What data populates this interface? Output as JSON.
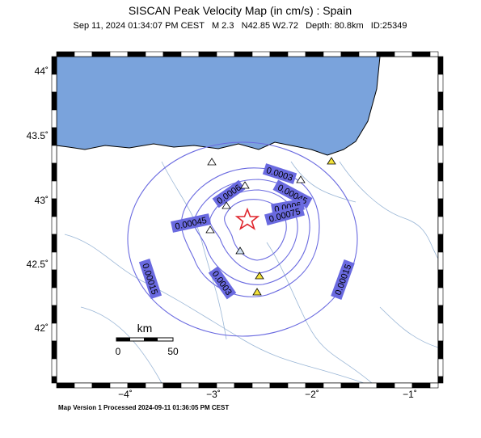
{
  "header": {
    "title": "SISCAN Peak Velocity Map (in cm/s) : Spain",
    "subtitle": "Sep 11, 2024 01:34:07 PM CEST   M 2.3   N42.85 W2.72   Depth: 80.8km   ID:25349"
  },
  "map": {
    "lat_labels": [
      "44˚",
      "43.5˚",
      "43˚",
      "42.5˚",
      "42˚"
    ],
    "lon_labels": [
      "−4˚",
      "−3˚",
      "−2˚",
      "−1˚"
    ],
    "contour_labels": [
      "0.0003",
      "0.00045",
      "0.0006",
      "0.0006",
      "0.00075",
      "0.00045",
      "0.00015",
      "0.0003",
      "0.00015"
    ],
    "scale": {
      "unit": "km",
      "start": "0",
      "end": "50"
    }
  },
  "footer": "Map Version 1 Processed 2024-09-11 01:36:05 PM CEST"
}
